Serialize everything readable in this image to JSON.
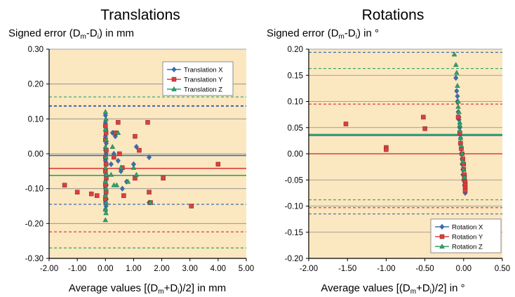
{
  "chart_data": [
    {
      "type": "scatter",
      "title": "Translations",
      "ylabel": {
        "prefix": "Signed error (D",
        "sub1": "m",
        "mid": "-D",
        "sub2": "i",
        "suffix": ") in mm"
      },
      "xlabel": {
        "prefix": "Average values [(D",
        "sub1": "m",
        "mid": "+D",
        "sub2": "i",
        "suffix": ")/2] in mm"
      },
      "xlim": [
        -2,
        5
      ],
      "ylim": [
        -0.3,
        0.3
      ],
      "xticks": [
        "-2.00",
        "-1.00",
        "0.00",
        "1.00",
        "2.00",
        "3.00",
        "4.00",
        "5.00"
      ],
      "yticks": [
        "-0.30",
        "-0.20",
        "-0.10",
        "0.00",
        "0.10",
        "0.20",
        "0.30"
      ],
      "grid": true,
      "legend_position": "top-right",
      "series": [
        {
          "name": "Translation X",
          "color": "#3a6fb0",
          "marker": "diamond",
          "mean": -0.005,
          "lower": -0.145,
          "upper": 0.136,
          "points": [
            [
              0.0,
              0.11
            ],
            [
              0.0,
              0.09
            ],
            [
              0.02,
              0.07
            ],
            [
              0.0,
              0.05
            ],
            [
              0.03,
              0.03
            ],
            [
              0.0,
              0.01
            ],
            [
              0.02,
              0.0
            ],
            [
              0.0,
              -0.02
            ],
            [
              0.03,
              -0.03
            ],
            [
              0.0,
              -0.05
            ],
            [
              0.02,
              -0.06
            ],
            [
              0.0,
              -0.08
            ],
            [
              0.03,
              -0.09
            ],
            [
              0.0,
              -0.1
            ],
            [
              0.02,
              -0.11
            ],
            [
              0.0,
              -0.12
            ],
            [
              0.03,
              -0.13
            ],
            [
              0.0,
              -0.14
            ],
            [
              0.02,
              -0.15
            ],
            [
              0.0,
              -0.16
            ],
            [
              0.25,
              0.06
            ],
            [
              0.35,
              0.05
            ],
            [
              0.3,
              0.0
            ],
            [
              0.45,
              -0.02
            ],
            [
              0.55,
              -0.05
            ],
            [
              0.75,
              -0.08
            ],
            [
              1.0,
              -0.03
            ],
            [
              1.1,
              0.02
            ],
            [
              1.55,
              -0.01
            ],
            [
              1.55,
              -0.14
            ],
            [
              0.6,
              -0.1
            ],
            [
              0.2,
              -0.03
            ]
          ]
        },
        {
          "name": "Translation Y",
          "color": "#d94040",
          "marker": "square",
          "mean": -0.042,
          "lower": -0.224,
          "upper": 0.138,
          "points": [
            [
              -1.45,
              -0.09
            ],
            [
              -1.0,
              -0.11
            ],
            [
              -0.5,
              -0.115
            ],
            [
              -0.3,
              -0.12
            ],
            [
              0.0,
              0.08
            ],
            [
              0.02,
              0.06
            ],
            [
              0.0,
              0.04
            ],
            [
              0.03,
              0.01
            ],
            [
              0.0,
              -0.01
            ],
            [
              0.02,
              -0.03
            ],
            [
              0.0,
              -0.05
            ],
            [
              0.03,
              -0.07
            ],
            [
              0.0,
              -0.09
            ],
            [
              0.02,
              -0.11
            ],
            [
              0.0,
              -0.13
            ],
            [
              0.35,
              0.06
            ],
            [
              0.45,
              0.09
            ],
            [
              0.5,
              0.0
            ],
            [
              0.65,
              -0.12
            ],
            [
              1.05,
              0.05
            ],
            [
              1.2,
              0.01
            ],
            [
              1.05,
              -0.07
            ],
            [
              1.5,
              0.09
            ],
            [
              1.55,
              -0.11
            ],
            [
              1.6,
              -0.14
            ],
            [
              2.05,
              -0.07
            ],
            [
              3.05,
              -0.15
            ],
            [
              4.0,
              -0.03
            ],
            [
              0.3,
              -0.01
            ],
            [
              0.6,
              -0.04
            ]
          ]
        },
        {
          "name": "Translation Z",
          "color": "#2fa36b",
          "marker": "triangle",
          "mean": -0.062,
          "lower": -0.27,
          "upper": 0.163,
          "points": [
            [
              0.0,
              0.12
            ],
            [
              0.02,
              0.1
            ],
            [
              0.0,
              0.07
            ],
            [
              0.03,
              0.04
            ],
            [
              0.0,
              0.02
            ],
            [
              0.02,
              -0.01
            ],
            [
              0.0,
              -0.04
            ],
            [
              0.03,
              -0.06
            ],
            [
              0.0,
              -0.08
            ],
            [
              0.02,
              -0.1
            ],
            [
              0.0,
              -0.12
            ],
            [
              0.03,
              -0.14
            ],
            [
              0.0,
              -0.16
            ],
            [
              0.02,
              -0.17
            ],
            [
              0.0,
              -0.19
            ],
            [
              0.2,
              -0.06
            ],
            [
              0.4,
              -0.09
            ],
            [
              0.3,
              -0.09
            ],
            [
              0.45,
              0.06
            ],
            [
              0.55,
              -0.04
            ],
            [
              1.0,
              -0.04
            ],
            [
              1.1,
              -0.06
            ],
            [
              1.6,
              -0.14
            ],
            [
              0.8,
              -0.08
            ],
            [
              0.25,
              0.02
            ]
          ]
        }
      ]
    },
    {
      "type": "scatter",
      "title": "Rotations",
      "ylabel": {
        "prefix": "Signed error (D",
        "sub1": "m",
        "mid": "-D",
        "sub2": "i",
        "suffix": ") in °"
      },
      "xlabel": {
        "prefix": "Average values [(D",
        "sub1": "m",
        "mid": "+D",
        "sub2": "i",
        "suffix": ")/2] in °"
      },
      "xlim": [
        -2,
        0.5
      ],
      "ylim": [
        -0.2,
        0.2
      ],
      "xticks": [
        "-2.00",
        "-1.50",
        "-1.00",
        "-0.50",
        "0.00",
        "0.50"
      ],
      "yticks": [
        "-0.20",
        "-0.15",
        "-0.10",
        "-0.05",
        "0.00",
        "0.05",
        "0.10",
        "0.15",
        "0.20"
      ],
      "grid": true,
      "legend_position": "bottom-right",
      "series": [
        {
          "name": "Rotation X",
          "color": "#3a6fb0",
          "marker": "diamond",
          "mean": 0.035,
          "lower": -0.115,
          "upper": 0.194,
          "points": [
            [
              -0.1,
              0.145
            ],
            [
              -0.09,
              0.12
            ],
            [
              -0.08,
              0.1
            ],
            [
              -0.07,
              0.08
            ],
            [
              -0.06,
              0.065
            ],
            [
              -0.05,
              0.05
            ],
            [
              -0.05,
              0.04
            ],
            [
              -0.04,
              0.03
            ],
            [
              -0.04,
              0.02
            ],
            [
              -0.03,
              0.01
            ],
            [
              -0.03,
              0.0
            ],
            [
              -0.02,
              -0.01
            ],
            [
              -0.02,
              -0.02
            ],
            [
              -0.01,
              -0.03
            ],
            [
              -0.01,
              -0.04
            ],
            [
              0.0,
              -0.05
            ],
            [
              0.01,
              -0.06
            ],
            [
              0.02,
              -0.075
            ],
            [
              -0.08,
              0.11
            ],
            [
              -0.06,
              0.07
            ]
          ]
        },
        {
          "name": "Rotation Y",
          "color": "#d94040",
          "marker": "square",
          "mean": 0.0,
          "lower": -0.103,
          "upper": 0.095,
          "points": [
            [
              -1.52,
              0.057
            ],
            [
              -1.0,
              0.012
            ],
            [
              -1.0,
              0.008
            ],
            [
              -0.52,
              0.07
            ],
            [
              -0.5,
              0.048
            ],
            [
              -0.07,
              0.07
            ],
            [
              -0.05,
              0.04
            ],
            [
              -0.04,
              0.02
            ],
            [
              -0.03,
              0.01
            ],
            [
              -0.02,
              0.0
            ],
            [
              -0.01,
              -0.01
            ],
            [
              0.0,
              -0.02
            ],
            [
              0.0,
              -0.03
            ],
            [
              0.01,
              -0.04
            ],
            [
              0.01,
              -0.05
            ],
            [
              0.02,
              -0.055
            ],
            [
              0.02,
              -0.06
            ],
            [
              0.02,
              -0.065
            ],
            [
              0.02,
              -0.07
            ],
            [
              0.01,
              -0.045
            ]
          ]
        },
        {
          "name": "Rotation Z",
          "color": "#2fa36b",
          "marker": "triangle",
          "mean": 0.037,
          "lower": -0.088,
          "upper": 0.163,
          "points": [
            [
              -0.12,
              0.19
            ],
            [
              -0.1,
              0.17
            ],
            [
              -0.09,
              0.155
            ],
            [
              -0.08,
              0.13
            ],
            [
              -0.07,
              0.1
            ],
            [
              -0.06,
              0.08
            ],
            [
              -0.05,
              0.06
            ],
            [
              -0.05,
              0.045
            ],
            [
              -0.04,
              0.03
            ],
            [
              -0.03,
              0.015
            ],
            [
              -0.02,
              0.0
            ],
            [
              -0.01,
              -0.015
            ],
            [
              0.0,
              -0.03
            ],
            [
              0.01,
              -0.045
            ],
            [
              -0.07,
              0.09
            ],
            [
              -0.05,
              0.055
            ]
          ]
        }
      ]
    }
  ]
}
